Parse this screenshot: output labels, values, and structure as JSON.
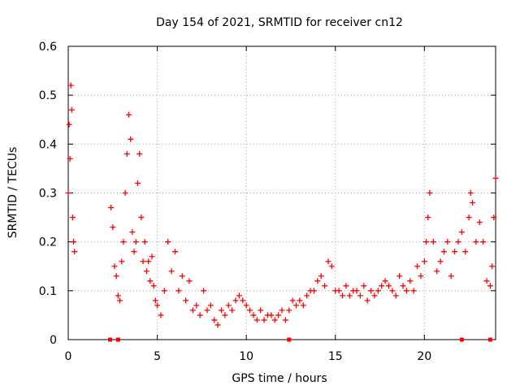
{
  "chart_data": {
    "type": "scatter",
    "title": "Day 154 of 2021, SRMTID for receiver cn12",
    "xlabel": "GPS time / hours",
    "ylabel": "SRMTID / TECUs",
    "xlim": [
      0,
      24
    ],
    "ylim": [
      0,
      0.6
    ],
    "xticks": [
      0,
      5,
      10,
      15,
      20
    ],
    "xtick_labels": [
      "0",
      "5",
      "10",
      "15",
      "20"
    ],
    "yticks": [
      0,
      0.1,
      0.2,
      0.3,
      0.4,
      0.5,
      0.6
    ],
    "ytick_labels": [
      "0",
      "0.1",
      "0.2",
      "0.3",
      "0.4",
      "0.5",
      "0.6"
    ],
    "grid": true,
    "marker": "plus",
    "series": [
      {
        "name": "SRMTID",
        "color": "#ff0000",
        "x": [
          0.0,
          0.05,
          0.1,
          0.15,
          0.2,
          0.25,
          0.3,
          0.35,
          2.4,
          2.5,
          2.6,
          2.7,
          2.8,
          2.9,
          3.0,
          3.1,
          3.2,
          3.3,
          3.4,
          3.5,
          3.6,
          3.7,
          3.8,
          3.9,
          4.0,
          4.1,
          4.2,
          4.3,
          4.4,
          4.5,
          4.6,
          4.7,
          4.8,
          4.9,
          5.0,
          5.2,
          5.4,
          5.6,
          5.8,
          6.0,
          6.2,
          6.4,
          6.6,
          6.8,
          7.0,
          7.2,
          7.4,
          7.6,
          7.8,
          8.0,
          8.2,
          8.4,
          8.6,
          8.8,
          9.0,
          9.2,
          9.4,
          9.6,
          9.8,
          10.0,
          10.2,
          10.4,
          10.6,
          10.8,
          11.0,
          11.2,
          11.4,
          11.6,
          11.8,
          12.0,
          12.2,
          12.4,
          12.6,
          12.8,
          13.0,
          13.2,
          13.4,
          13.6,
          13.8,
          14.0,
          14.2,
          14.4,
          14.6,
          14.8,
          15.0,
          15.2,
          15.4,
          15.6,
          15.8,
          16.0,
          16.2,
          16.4,
          16.6,
          16.8,
          17.0,
          17.2,
          17.4,
          17.6,
          17.8,
          18.0,
          18.2,
          18.4,
          18.6,
          18.8,
          19.0,
          19.2,
          19.4,
          19.6,
          19.8,
          20.0,
          20.1,
          20.2,
          20.3,
          20.5,
          20.7,
          20.9,
          21.1,
          21.3,
          21.5,
          21.7,
          21.9,
          22.1,
          22.3,
          22.5,
          22.6,
          22.7,
          22.9,
          23.1,
          23.3,
          23.5,
          23.7,
          23.8,
          23.9,
          24.0
        ],
        "y": [
          0.3,
          0.44,
          0.37,
          0.52,
          0.47,
          0.25,
          0.2,
          0.18,
          0.27,
          0.23,
          0.15,
          0.13,
          0.09,
          0.08,
          0.16,
          0.2,
          0.3,
          0.38,
          0.46,
          0.41,
          0.22,
          0.18,
          0.2,
          0.32,
          0.38,
          0.25,
          0.16,
          0.2,
          0.14,
          0.16,
          0.12,
          0.17,
          0.11,
          0.08,
          0.07,
          0.05,
          0.1,
          0.2,
          0.14,
          0.18,
          0.1,
          0.13,
          0.08,
          0.12,
          0.06,
          0.07,
          0.05,
          0.1,
          0.06,
          0.07,
          0.04,
          0.03,
          0.06,
          0.05,
          0.07,
          0.06,
          0.08,
          0.09,
          0.08,
          0.07,
          0.06,
          0.05,
          0.04,
          0.06,
          0.04,
          0.05,
          0.05,
          0.04,
          0.05,
          0.06,
          0.04,
          0.06,
          0.08,
          0.07,
          0.08,
          0.07,
          0.09,
          0.1,
          0.1,
          0.12,
          0.13,
          0.11,
          0.16,
          0.15,
          0.1,
          0.1,
          0.09,
          0.11,
          0.09,
          0.1,
          0.1,
          0.09,
          0.11,
          0.08,
          0.1,
          0.09,
          0.1,
          0.11,
          0.12,
          0.11,
          0.1,
          0.09,
          0.13,
          0.11,
          0.1,
          0.12,
          0.1,
          0.15,
          0.13,
          0.16,
          0.2,
          0.25,
          0.3,
          0.2,
          0.14,
          0.16,
          0.18,
          0.2,
          0.13,
          0.18,
          0.2,
          0.22,
          0.18,
          0.25,
          0.3,
          0.28,
          0.2,
          0.24,
          0.2,
          0.12,
          0.11,
          0.15,
          0.25,
          0.33
        ],
        "zero_markers_x": [
          2.35,
          2.8,
          12.4,
          22.1,
          23.7
        ]
      }
    ]
  }
}
